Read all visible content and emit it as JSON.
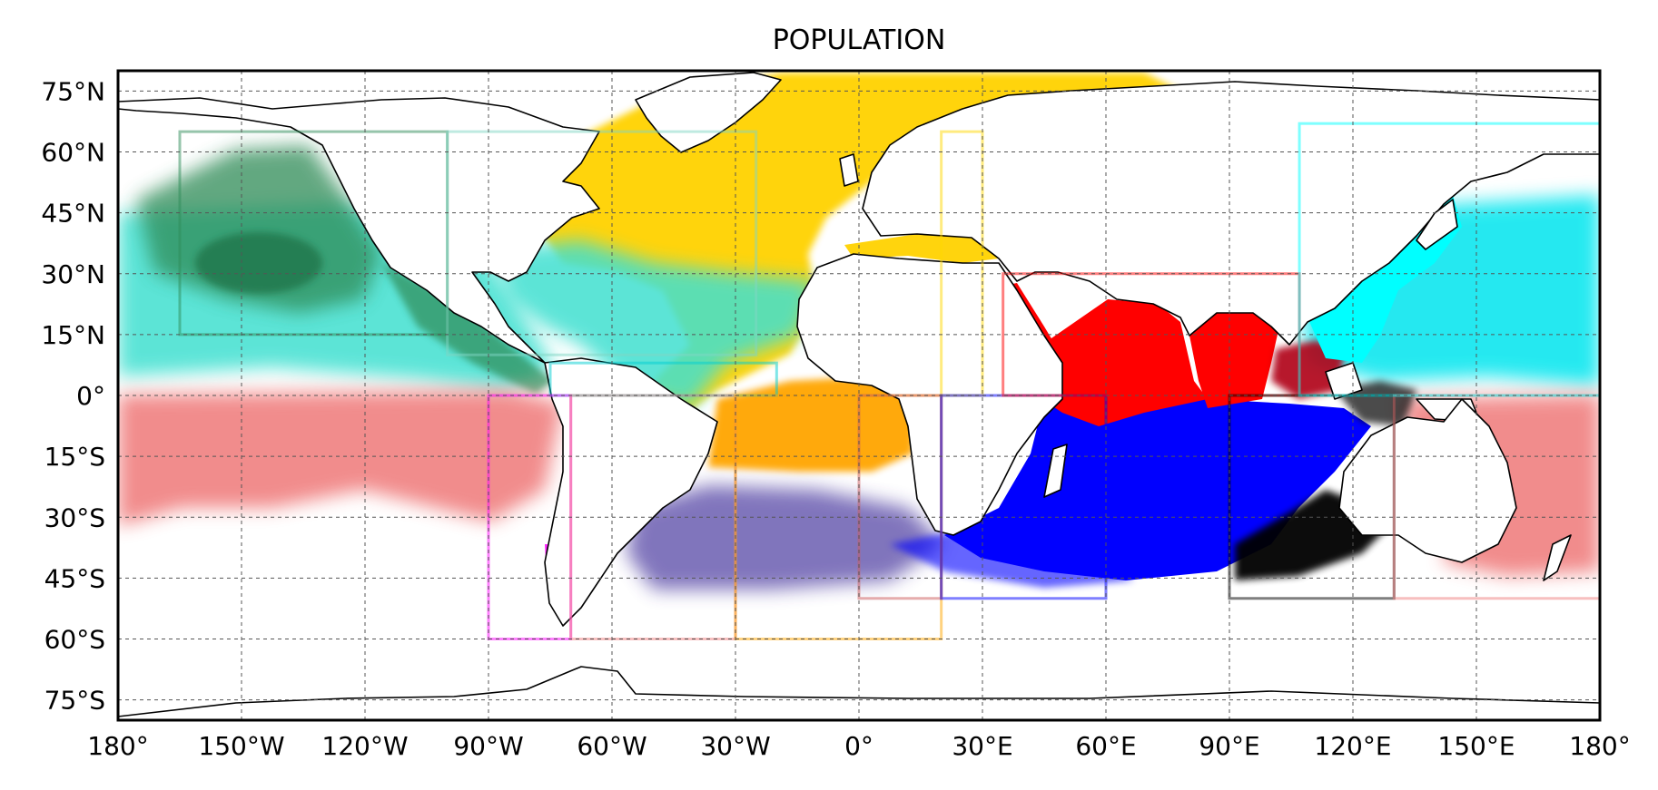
{
  "title": "POPULATION",
  "map": {
    "projection": "equirectangular",
    "lon_range": [
      -180,
      180
    ],
    "lat_range": [
      -80,
      80
    ],
    "grid": true,
    "lon_ticks": [
      {
        "value": -180,
        "label": "180°"
      },
      {
        "value": -150,
        "label": "150°W"
      },
      {
        "value": -120,
        "label": "120°W"
      },
      {
        "value": -90,
        "label": "90°W"
      },
      {
        "value": -60,
        "label": "60°W"
      },
      {
        "value": -30,
        "label": "30°W"
      },
      {
        "value": 0,
        "label": "0°"
      },
      {
        "value": 30,
        "label": "30°E"
      },
      {
        "value": 60,
        "label": "60°E"
      },
      {
        "value": 90,
        "label": "90°E"
      },
      {
        "value": 120,
        "label": "120°E"
      },
      {
        "value": 150,
        "label": "150°E"
      },
      {
        "value": 180,
        "label": "180°"
      }
    ],
    "lat_ticks": [
      {
        "value": 75,
        "label": "75°N"
      },
      {
        "value": 60,
        "label": "60°N"
      },
      {
        "value": 45,
        "label": "45°N"
      },
      {
        "value": 30,
        "label": "30°N"
      },
      {
        "value": 15,
        "label": "15°N"
      },
      {
        "value": 0,
        "label": "0°"
      },
      {
        "value": -15,
        "label": "15°S"
      },
      {
        "value": -30,
        "label": "30°S"
      },
      {
        "value": -45,
        "label": "45°S"
      },
      {
        "value": -60,
        "label": "60°S"
      },
      {
        "value": -75,
        "label": "75°S"
      }
    ],
    "population_regions": [
      {
        "color": "#2e8b57",
        "lon": [
          -165,
          -100
        ],
        "lat": [
          15,
          65
        ]
      },
      {
        "color": "#7fd6c4",
        "lon": [
          -100,
          -25
        ],
        "lat": [
          10,
          65
        ]
      },
      {
        "color": "#00ced1",
        "lon": [
          -75,
          -20
        ],
        "lat": [
          0,
          8
        ]
      },
      {
        "color": "#ff00ff",
        "lon": [
          -90,
          -70
        ],
        "lat": [
          -60,
          0
        ]
      },
      {
        "color": "#f08080",
        "lon": [
          -70,
          -30
        ],
        "lat": [
          -60,
          0
        ]
      },
      {
        "color": "#ffa500",
        "lon": [
          -30,
          20
        ],
        "lat": [
          -60,
          0
        ]
      },
      {
        "color": "#ffd700",
        "lon": [
          20,
          30
        ],
        "lat": [
          0,
          65
        ]
      },
      {
        "color": "#cd5c5c",
        "lon": [
          0,
          20
        ],
        "lat": [
          -50,
          0
        ]
      },
      {
        "color": "#0000ff",
        "lon": [
          20,
          60
        ],
        "lat": [
          -50,
          0
        ]
      },
      {
        "color": "#ff0000",
        "lon": [
          35,
          107
        ],
        "lat": [
          0,
          30
        ]
      },
      {
        "color": "#000000",
        "lon": [
          90,
          130
        ],
        "lat": [
          -50,
          0
        ]
      },
      {
        "color": "#f08080",
        "lon": [
          130,
          180
        ],
        "lat": [
          -50,
          0
        ]
      },
      {
        "color": "#00ffff",
        "lon": [
          107,
          180
        ],
        "lat": [
          0,
          67
        ]
      }
    ],
    "colors": {
      "northeast_pacific": "#2e8b57",
      "north_pacific_tropical": "#40e0d0",
      "north_atlantic": "#ffd200",
      "tropical_atlantic": "#40e0d0",
      "south_atlantic": "#ffa500",
      "south_pacific": "#f08080",
      "indian_ocean_south": "#0000ff",
      "indian_ocean_north": "#ff0000",
      "australia_sector": "#000000",
      "west_pacific": "#00ffff",
      "chile_coast": "#ff00ff"
    }
  }
}
